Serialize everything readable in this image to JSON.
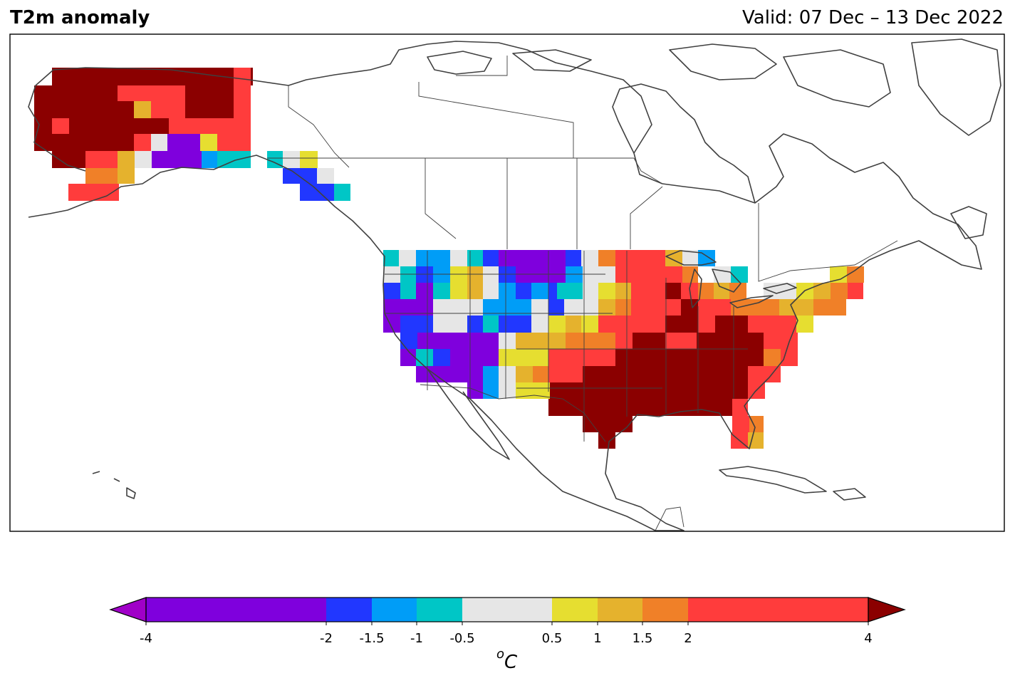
{
  "header": {
    "title": "T2m anomaly",
    "valid": "Valid: 07 Dec – 13 Dec 2022"
  },
  "colorbar": {
    "unit": "°C",
    "unit_base": "o",
    "unit_symbol": "C",
    "ticks": [
      {
        "value": -4,
        "label": "-4"
      },
      {
        "value": -2,
        "label": "-2"
      },
      {
        "value": -1.5,
        "label": "-1.5"
      },
      {
        "value": -1,
        "label": "-1"
      },
      {
        "value": -0.5,
        "label": "-0.5"
      },
      {
        "value": 0.5,
        "label": "0.5"
      },
      {
        "value": 1,
        "label": "1"
      },
      {
        "value": 1.5,
        "label": "1.5"
      },
      {
        "value": 2,
        "label": "2"
      },
      {
        "value": 4,
        "label": "4"
      }
    ],
    "bins": [
      {
        "from": -4,
        "to": -2,
        "color": "#7f00dd"
      },
      {
        "from": -2,
        "to": -1.5,
        "color": "#2137ff"
      },
      {
        "from": -1.5,
        "to": -1,
        "color": "#009df7"
      },
      {
        "from": -1,
        "to": -0.5,
        "color": "#00c6c6"
      },
      {
        "from": -0.5,
        "to": 0.5,
        "color": "#e6e6e6"
      },
      {
        "from": 0.5,
        "to": 1,
        "color": "#e6de30"
      },
      {
        "from": 1,
        "to": 1.5,
        "color": "#e5b22d"
      },
      {
        "from": 1.5,
        "to": 2,
        "color": "#f08028"
      },
      {
        "from": 2,
        "to": 4,
        "color": "#ff3c3c"
      }
    ],
    "under_color": "#a000c8",
    "over_color": "#8b0000"
  },
  "colors": {
    "coastline": "#404040",
    "frame": "#000000"
  }
}
